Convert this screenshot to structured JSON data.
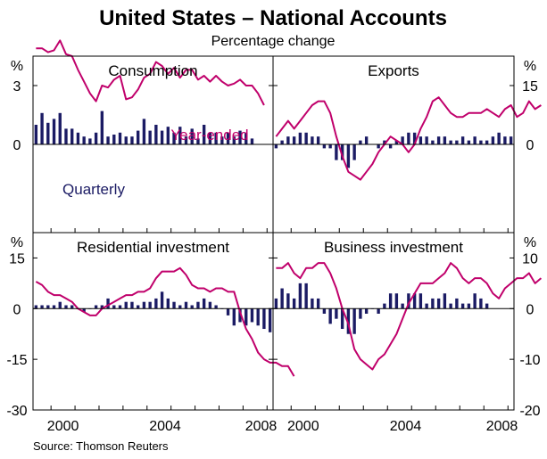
{
  "title": "United States – National Accounts",
  "subtitle": "Percentage change",
  "source": "Source: Thomson Reuters",
  "colors": {
    "year_ended": "#c0006b",
    "quarterly": "#1b1b64",
    "axis": "#000000",
    "background": "#ffffff"
  },
  "x_tick_labels": [
    "2000",
    "2004",
    "2008"
  ],
  "chart_data": [
    {
      "type": "bar+line",
      "title": "Consumption",
      "unit_label": "%",
      "ylim": [
        -4.5,
        4.5
      ],
      "left_ticks": [
        "3",
        "0"
      ],
      "left_tick_values": [
        3,
        0
      ],
      "right_ticks": [],
      "right_tick_values": [],
      "line_label": "Year-ended",
      "bar_label": "Quarterly",
      "x_start": 1998.75,
      "x_step": 0.25,
      "line": [
        4.9,
        4.9,
        4.7,
        4.8,
        5.3,
        4.6,
        4.5,
        3.8,
        3.2,
        2.6,
        2.2,
        3.0,
        2.9,
        3.3,
        3.5,
        2.3,
        2.4,
        2.8,
        3.4,
        3.6,
        4.2,
        4.0,
        3.6,
        3.9,
        3.4,
        3.8,
        3.8,
        3.3,
        3.5,
        3.2,
        3.5,
        3.2,
        3.0,
        3.1,
        3.3,
        3.0,
        3.0,
        2.6,
        2.0
      ],
      "bars": [
        1.0,
        1.6,
        1.1,
        1.3,
        1.6,
        0.8,
        0.8,
        0.6,
        0.4,
        0.3,
        0.6,
        1.7,
        0.4,
        0.5,
        0.6,
        0.4,
        0.4,
        0.7,
        1.3,
        0.7,
        1.0,
        0.7,
        0.9,
        0.6,
        0.9,
        0.4,
        0.8,
        0.3,
        1.0,
        0.6,
        0.6,
        0.4,
        0.6,
        0.4,
        0.7,
        0.6,
        0.3
      ]
    },
    {
      "type": "bar+line",
      "title": "Exports",
      "unit_label": "%",
      "ylim": [
        -22.5,
        22.5
      ],
      "left_ticks": [],
      "left_tick_values": [],
      "right_ticks": [
        "15",
        "0"
      ],
      "right_tick_values": [
        15,
        0
      ],
      "line_label": "",
      "bar_label": "",
      "x_start": 1998.75,
      "x_step": 0.25,
      "line": [
        2,
        4,
        6,
        4,
        6,
        8,
        10,
        11,
        11,
        8,
        2,
        -3,
        -7,
        -8,
        -9,
        -7,
        -5,
        -2,
        0,
        2,
        1,
        0,
        -2,
        0,
        4,
        7,
        11,
        12,
        10,
        8,
        7,
        7,
        8,
        8,
        8,
        9,
        8,
        7,
        9,
        10,
        7,
        8,
        11,
        9,
        10
      ],
      "bars": [
        -1,
        1,
        2,
        2,
        3,
        3,
        2,
        2,
        -1,
        -1,
        -4,
        -4,
        -6,
        -4,
        1,
        2,
        0,
        -1,
        1,
        -1,
        1,
        2,
        3,
        3,
        2,
        2,
        1,
        2,
        2,
        1,
        1,
        2,
        1,
        2,
        1,
        1,
        2,
        3,
        2,
        2
      ]
    },
    {
      "type": "bar+line",
      "title": "Residential investment",
      "unit_label": "%",
      "ylim": [
        -30,
        22.5
      ],
      "left_ticks": [
        "15",
        "0",
        "-15",
        "-30"
      ],
      "left_tick_values": [
        15,
        0,
        -15,
        -30
      ],
      "right_ticks": [],
      "right_tick_values": [],
      "line_label": "",
      "bar_label": "",
      "x_start": 1998.75,
      "x_step": 0.25,
      "line": [
        8,
        7,
        5,
        4,
        4,
        3,
        2,
        0,
        -1,
        -2,
        -2,
        0,
        1,
        2,
        3,
        4,
        4,
        5,
        5,
        6,
        9,
        11,
        11,
        11,
        12,
        10,
        7,
        6,
        6,
        5,
        6,
        6,
        5,
        5,
        -1,
        -6,
        -9,
        -13,
        -15,
        -16,
        -16,
        -17,
        -17,
        -20
      ],
      "bars": [
        1,
        1,
        1,
        1,
        2,
        1,
        1,
        0,
        -1,
        0,
        1,
        1,
        3,
        1,
        1,
        2,
        2,
        1,
        2,
        2,
        3,
        5,
        3,
        2,
        1,
        2,
        1,
        2,
        3,
        2,
        1,
        0,
        -2,
        -5,
        -4,
        -5,
        -4,
        -5,
        -6,
        -7
      ]
    },
    {
      "type": "bar+line",
      "title": "Business investment",
      "unit_label": "%",
      "ylim": [
        -20,
        15
      ],
      "left_ticks": [],
      "left_tick_values": [],
      "right_ticks": [
        "10",
        "0",
        "-10",
        "-20"
      ],
      "right_tick_values": [
        10,
        0,
        -10,
        -20
      ],
      "line_label": "",
      "bar_label": "",
      "x_start": 1998.75,
      "x_step": 0.25,
      "line": [
        8,
        8,
        9,
        7,
        6,
        8,
        8,
        9,
        9,
        7,
        4,
        0,
        -3,
        -8,
        -10,
        -11,
        -12,
        -10,
        -9,
        -7,
        -5,
        -2,
        1,
        3,
        5,
        5,
        5,
        6,
        7,
        9,
        8,
        6,
        5,
        6,
        6,
        5,
        3,
        2,
        4,
        5,
        6,
        6,
        7,
        5,
        6
      ],
      "bars": [
        2,
        4,
        3,
        2,
        5,
        5,
        2,
        2,
        -1,
        -3,
        -2,
        -4,
        -5,
        -5,
        -2,
        -1,
        0,
        -1,
        1,
        3,
        3,
        1,
        3,
        3,
        3,
        1,
        2,
        2,
        3,
        1,
        2,
        1,
        1,
        3,
        2,
        1
      ]
    }
  ]
}
